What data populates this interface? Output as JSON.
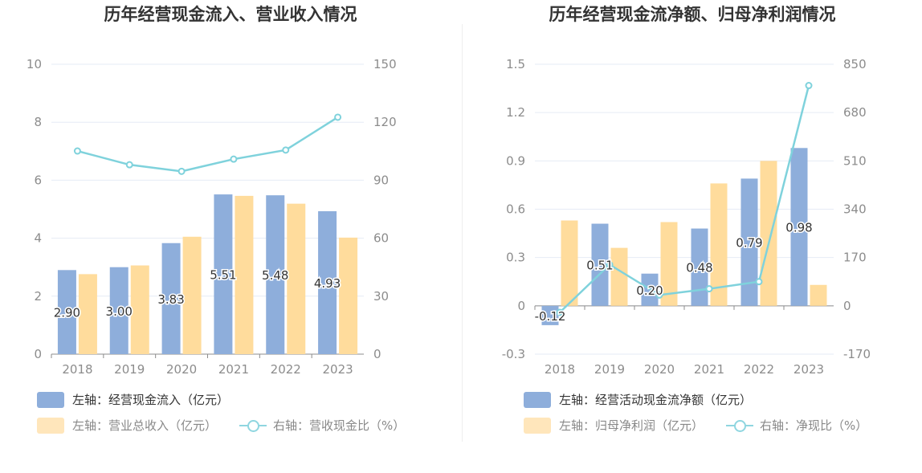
{
  "colors": {
    "bar_primary": "#8eaedb",
    "bar_secondary": "#ffdc9c",
    "line": "#7fd2dc",
    "grid": "#e6ebf5",
    "axis": "#8c8c8c"
  },
  "chart_data": [
    {
      "type": "bar",
      "title": "历年经营现金流入、营业收入情况",
      "categories": [
        "2018",
        "2019",
        "2020",
        "2021",
        "2022",
        "2023"
      ],
      "left_axis": {
        "ylim": [
          0,
          10
        ],
        "ticks": [
          "0",
          "2",
          "4",
          "6",
          "8",
          "10"
        ]
      },
      "right_axis": {
        "ylim": [
          0,
          150
        ],
        "ticks": [
          "0",
          "30",
          "60",
          "90",
          "120",
          "150"
        ]
      },
      "series": [
        {
          "name": "左轴：经营现金流入（亿元）",
          "kind": "bar",
          "axis": "left",
          "values": [
            2.9,
            3.0,
            3.83,
            5.51,
            5.48,
            4.93
          ],
          "labels": [
            "2.90",
            "3.00",
            "3.83",
            "5.51",
            "5.48",
            "4.93"
          ]
        },
        {
          "name": "左轴：营业总收入（亿元）",
          "kind": "bar",
          "axis": "left",
          "values": [
            2.76,
            3.06,
            4.05,
            5.46,
            5.19,
            4.02
          ]
        },
        {
          "name": "右轴：营收现金比（%）",
          "kind": "line",
          "axis": "right",
          "values": [
            105.1,
            98.0,
            94.6,
            100.9,
            105.6,
            122.6
          ]
        }
      ]
    },
    {
      "type": "bar",
      "title": "历年经营现金流净额、归母净利润情况",
      "categories": [
        "2018",
        "2019",
        "2020",
        "2021",
        "2022",
        "2023"
      ],
      "left_axis": {
        "ylim": [
          -0.3,
          1.5
        ],
        "ticks": [
          "-0.3",
          "0",
          "0.3",
          "0.6",
          "0.9",
          "1.2",
          "1.5"
        ]
      },
      "right_axis": {
        "ylim": [
          -170,
          850
        ],
        "ticks": [
          "-170",
          "0",
          "170",
          "340",
          "510",
          "680",
          "850"
        ]
      },
      "series": [
        {
          "name": "左轴：经营活动现金流净额（亿元）",
          "kind": "bar",
          "axis": "left",
          "values": [
            -0.12,
            0.51,
            0.2,
            0.48,
            0.79,
            0.98
          ],
          "labels": [
            "-0.12",
            "0.51",
            "0.20",
            "0.48",
            "0.79",
            "0.98"
          ]
        },
        {
          "name": "左轴：归母净利润（亿元）",
          "kind": "bar",
          "axis": "left",
          "values": [
            0.53,
            0.36,
            0.52,
            0.76,
            0.9,
            0.13
          ]
        },
        {
          "name": "右轴：净现比（%）",
          "kind": "line",
          "axis": "right",
          "values": [
            -23,
            145,
            38,
            60,
            85,
            775
          ]
        }
      ]
    }
  ]
}
